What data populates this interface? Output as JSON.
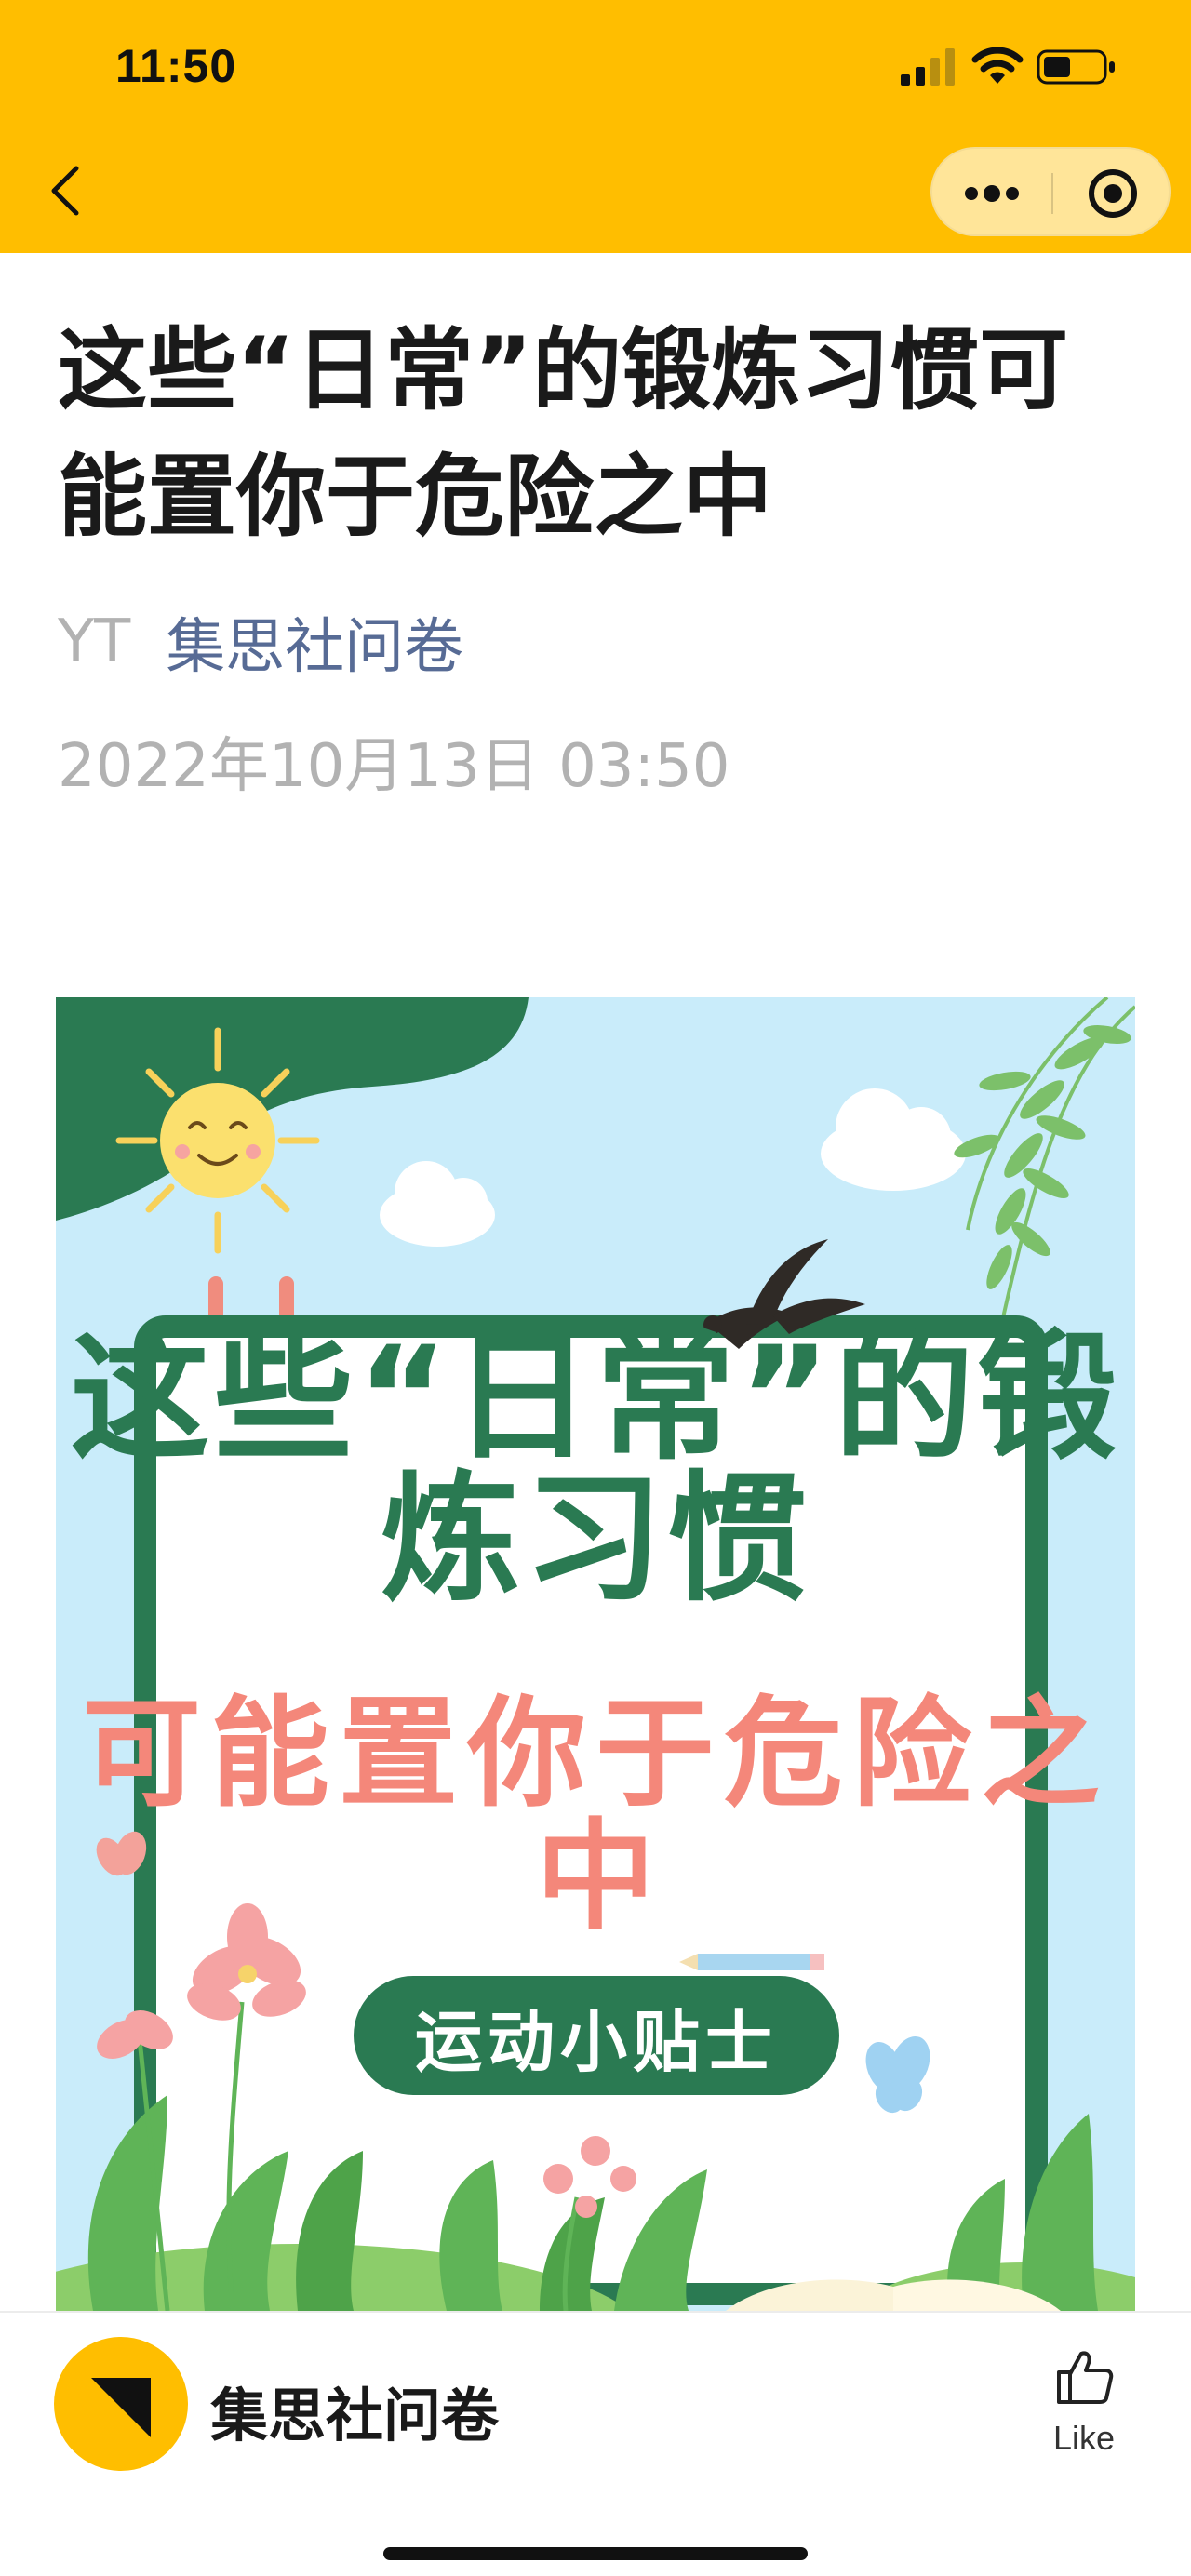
{
  "status_bar": {
    "time": "11:50"
  },
  "nav": {
    "back_icon": "chevron-left-icon",
    "more_icon": "more-dots-icon",
    "close_icon": "target-circle-icon"
  },
  "article": {
    "title": "这些“日常”的锻炼习惯可能置你于危险之中",
    "author": "YT",
    "account": "集思社问卷",
    "date": "2022年10月13日 03:50"
  },
  "cover": {
    "title_line1": "这些“日常”的锻",
    "title_line2": "炼习惯",
    "subtitle_line1": "可能置你于危险之",
    "subtitle_line2": "中",
    "pill": "运动小贴士",
    "colors": {
      "green": "#2a7a52",
      "pink": "#f4877a",
      "sky": "#c9ecfa"
    }
  },
  "bottom_bar": {
    "account_name": "集思社问卷",
    "like_label": "Like",
    "like_icon": "thumbs-up-icon"
  },
  "theme": {
    "accent": "#FFBE00",
    "link": "#576b95",
    "muted": "#b2b2b2"
  }
}
